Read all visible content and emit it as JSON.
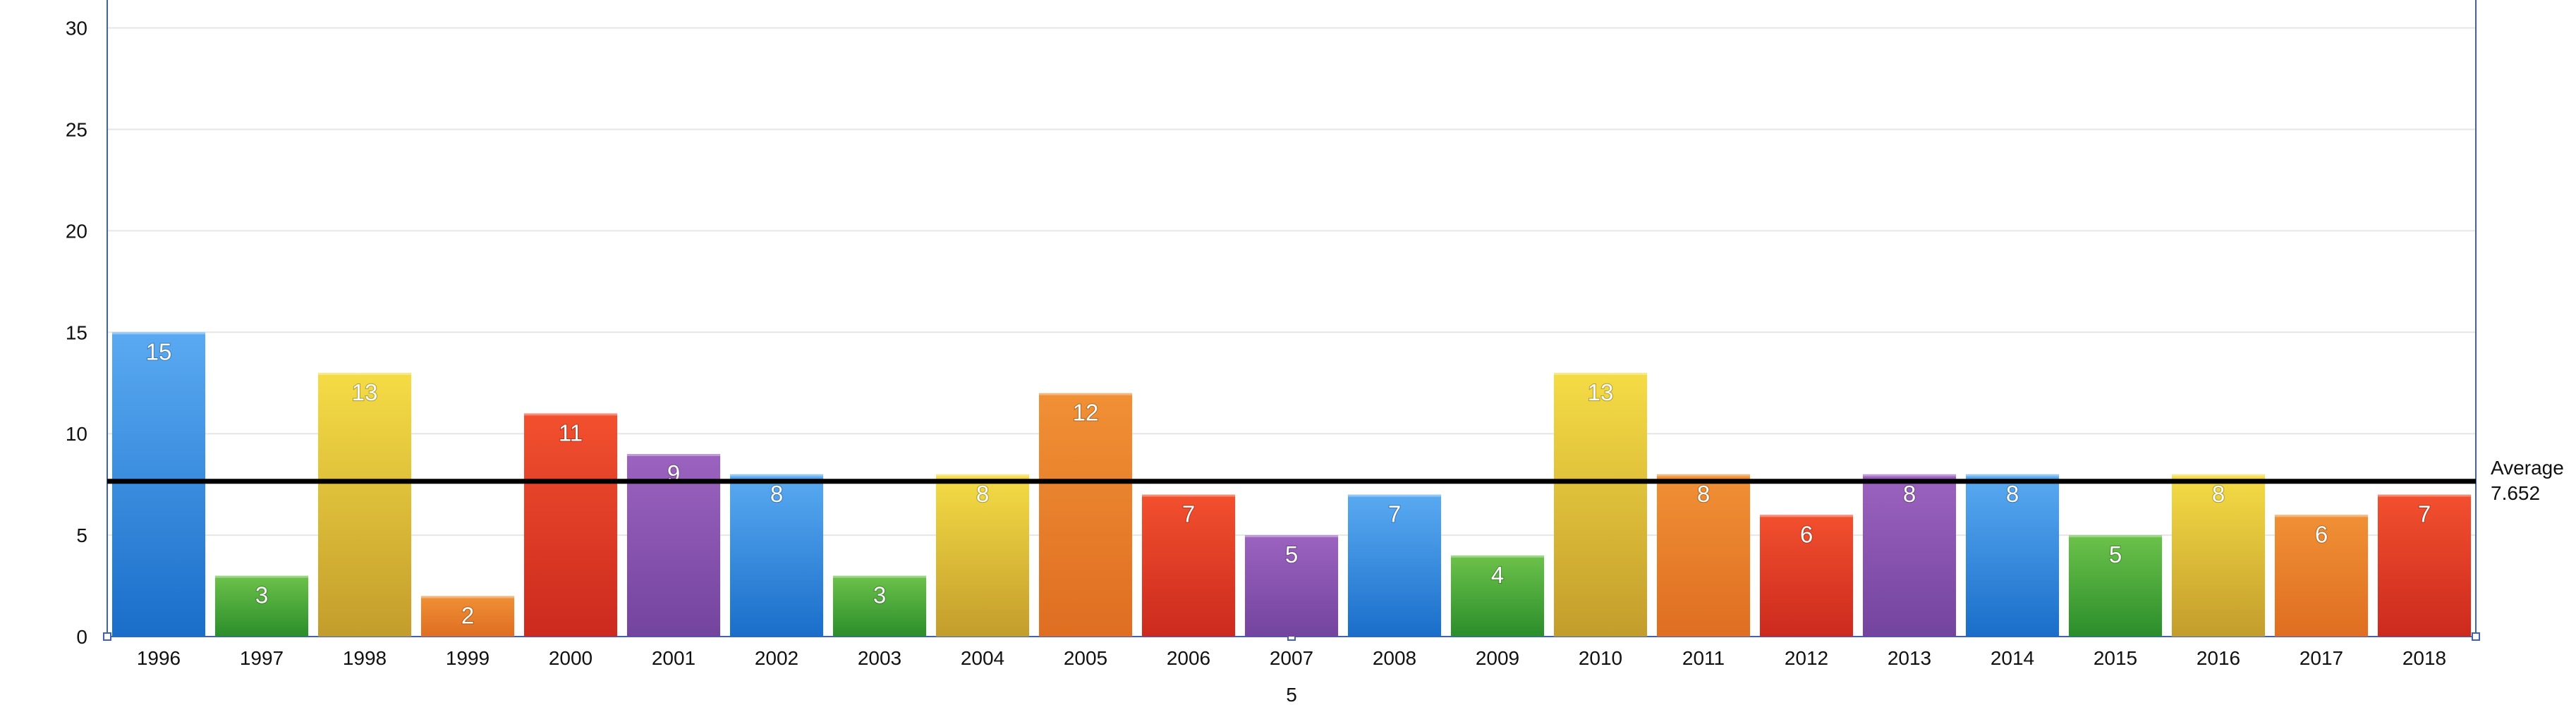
{
  "chart_data": {
    "type": "bar",
    "categories": [
      "1996",
      "1997",
      "1998",
      "1999",
      "2000",
      "2001",
      "2002",
      "2003",
      "2004",
      "2005",
      "2006",
      "2007",
      "2008",
      "2009",
      "2010",
      "2011",
      "2012",
      "2013",
      "2014",
      "2015",
      "2016",
      "2017",
      "2018"
    ],
    "values": [
      15,
      3,
      13,
      2,
      11,
      9,
      8,
      3,
      8,
      12,
      7,
      5,
      7,
      4,
      13,
      8,
      6,
      8,
      8,
      5,
      8,
      6,
      7
    ],
    "ylim": [
      0,
      31
    ],
    "yticks": [
      0,
      5,
      10,
      15,
      20,
      25,
      30
    ],
    "xlabel": "5",
    "grid": true,
    "average": {
      "label": "Average",
      "value": "7.652"
    },
    "palette": [
      "blue",
      "green",
      "yellow",
      "orange",
      "red",
      "purple"
    ],
    "colors": {
      "blue": [
        "#5aaaf2",
        "#1a6ec9"
      ],
      "green": [
        "#6cc24a",
        "#2b8d2b"
      ],
      "yellow": [
        "#f5dc45",
        "#c39d2c"
      ],
      "orange": [
        "#f09035",
        "#df6e22"
      ],
      "red": [
        "#f2502e",
        "#cc2a1e"
      ],
      "purple": [
        "#9b63bf",
        "#73449e"
      ]
    }
  }
}
